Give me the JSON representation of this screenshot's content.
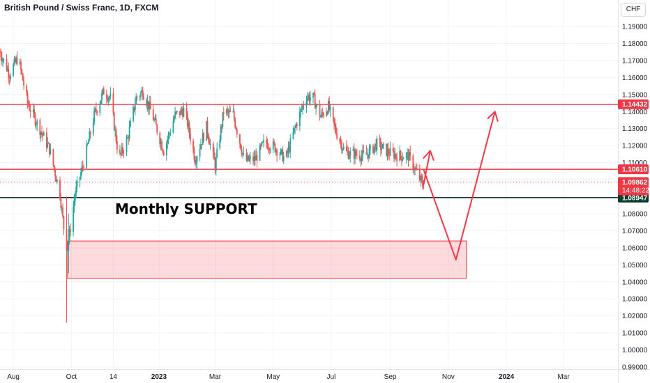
{
  "header": {
    "title": "British Pound / Swiss Franc, 1D, FXCM",
    "currency_button": "CHF"
  },
  "annotation": "Monthly SUPPORT",
  "chart_data": {
    "type": "candlestick",
    "symbol": "GBPCHF",
    "timeframe": "1D",
    "ylim": [
      0.99,
      1.195
    ],
    "y_ticks": [
      "1.19000",
      "1.18000",
      "1.17000",
      "1.16000",
      "1.15000",
      "1.14000",
      "1.13000",
      "1.12000",
      "1.11000",
      "1.10000",
      "1.09000",
      "1.08000",
      "1.07000",
      "1.06000",
      "1.05000",
      "1.04000",
      "1.03000",
      "1.02000",
      "1.01000",
      "1.00000",
      "0.99000"
    ],
    "x_ticks": [
      "Aug",
      "Oct",
      "14",
      "2023",
      "Mar",
      "May",
      "Jul",
      "Sep",
      "Nov",
      "2024",
      "Mar"
    ],
    "price_path": [
      [
        "2022-07-18",
        1.175
      ],
      [
        "2022-07-28",
        1.162
      ],
      [
        "2022-08-06",
        1.172
      ],
      [
        "2022-08-16",
        1.145
      ],
      [
        "2022-08-27",
        1.132
      ],
      [
        "2022-09-08",
        1.118
      ],
      [
        "2022-09-19",
        1.092
      ],
      [
        "2022-09-25",
        1.062
      ],
      [
        "2022-09-27",
        1.06
      ],
      [
        "2022-10-05",
        1.092
      ],
      [
        "2022-10-15",
        1.112
      ],
      [
        "2022-10-25",
        1.138
      ],
      [
        "2022-11-04",
        1.152
      ],
      [
        "2022-11-11",
        1.148
      ],
      [
        "2022-11-20",
        1.112
      ],
      [
        "2022-11-29",
        1.124
      ],
      [
        "2022-12-08",
        1.148
      ],
      [
        "2022-12-15",
        1.152
      ],
      [
        "2022-12-25",
        1.138
      ],
      [
        "2023-01-06",
        1.117
      ],
      [
        "2023-01-18",
        1.138
      ],
      [
        "2023-01-28",
        1.141
      ],
      [
        "2023-02-08",
        1.112
      ],
      [
        "2023-02-20",
        1.131
      ],
      [
        "2023-03-01",
        1.108
      ],
      [
        "2023-03-10",
        1.14
      ],
      [
        "2023-03-20",
        1.138
      ],
      [
        "2023-04-01",
        1.111
      ],
      [
        "2023-04-12",
        1.112
      ],
      [
        "2023-04-22",
        1.122
      ],
      [
        "2023-05-03",
        1.119
      ],
      [
        "2023-05-14",
        1.112
      ],
      [
        "2023-05-26",
        1.134
      ],
      [
        "2023-06-05",
        1.149
      ],
      [
        "2023-06-12",
        1.148
      ],
      [
        "2023-06-20",
        1.137
      ],
      [
        "2023-06-28",
        1.143
      ],
      [
        "2023-07-06",
        1.128
      ],
      [
        "2023-07-16",
        1.116
      ],
      [
        "2023-07-26",
        1.115
      ],
      [
        "2023-08-06",
        1.114
      ],
      [
        "2023-08-18",
        1.121
      ],
      [
        "2023-08-30",
        1.116
      ],
      [
        "2023-09-10",
        1.114
      ],
      [
        "2023-09-20",
        1.114
      ],
      [
        "2023-09-28",
        1.105
      ],
      [
        "2023-10-05",
        1.097
      ],
      [
        "2023-10-07",
        1.0986
      ]
    ],
    "candle_extremes": [
      {
        "date": "2022-09-26",
        "high": 1.09,
        "low": 1.016
      },
      {
        "date": "2022-09-28",
        "high": 1.08,
        "low": 1.045
      }
    ],
    "horizontal_lines": [
      {
        "price": 1.14432,
        "label": "1.14432",
        "color": "#f23645"
      },
      {
        "price": 1.1061,
        "label": "1.10610",
        "color": "#f23645"
      },
      {
        "price": 1.08947,
        "label": "1.08947",
        "color": "#0b3d2e"
      }
    ],
    "current_price": {
      "price": 1.09862,
      "label": "1.09862",
      "countdown": "14:48:22",
      "color": "#f23645"
    },
    "zone": {
      "from": "2022-09-27",
      "to": "2023-11-20",
      "top": 1.064,
      "bottom": 1.042,
      "color": "#f23645"
    },
    "projection": [
      {
        "path": [
          [
            "2023-10-06",
            1.097
          ],
          [
            "2023-10-13",
            1.117
          ]
        ],
        "color": "#f23645"
      },
      {
        "path": [
          [
            "2023-10-06",
            1.106
          ],
          [
            "2023-11-09",
            1.053
          ],
          [
            "2023-12-20",
            1.14
          ]
        ],
        "color": "#f23645"
      }
    ],
    "colors": {
      "up": "#26a69a",
      "down": "#ef5350",
      "grid": "#f0f3fa",
      "axis_text": "#131722"
    }
  }
}
